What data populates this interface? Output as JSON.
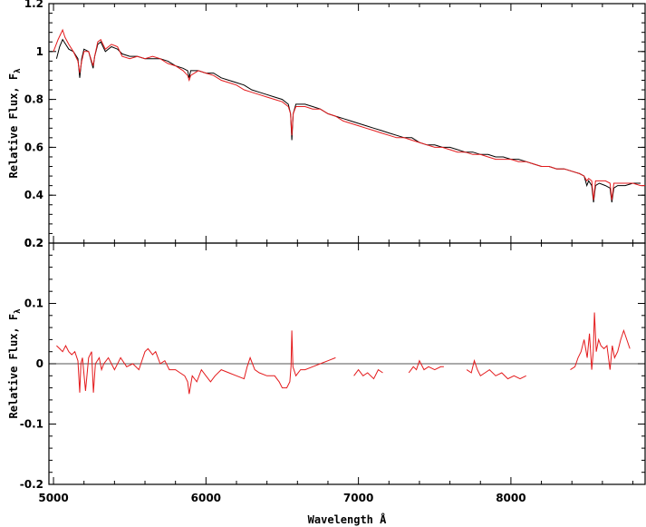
{
  "chart_data": [
    {
      "type": "line",
      "panel": "top",
      "ylabel": "Relative Flux, F",
      "ylabel_subscript": "λ",
      "xlim": [
        4970,
        8880
      ],
      "ylim": [
        0.2,
        1.2
      ],
      "yticks": [
        "0.2",
        "0.4",
        "0.6",
        "0.8",
        "1",
        "1.2"
      ],
      "series": [
        {
          "color": "#000000",
          "x": [
            5020,
            5040,
            5060,
            5080,
            5100,
            5130,
            5160,
            5172,
            5185,
            5200,
            5230,
            5260,
            5270,
            5290,
            5310,
            5340,
            5380,
            5420,
            5450,
            5500,
            5550,
            5600,
            5650,
            5700,
            5750,
            5800,
            5850,
            5880,
            5890,
            5900,
            5950,
            6000,
            6050,
            6100,
            6150,
            6200,
            6250,
            6300,
            6350,
            6400,
            6450,
            6500,
            6540,
            6555,
            6563,
            6572,
            6590,
            6650,
            6700,
            6750,
            6800,
            6850,
            6900,
            6950,
            7000,
            7050,
            7100,
            7150,
            7200,
            7250,
            7300,
            7350,
            7400,
            7450,
            7500,
            7550,
            7600,
            7650,
            7700,
            7750,
            7800,
            7850,
            7900,
            7950,
            8000,
            8050,
            8100,
            8150,
            8200,
            8250,
            8300,
            8350,
            8400,
            8450,
            8480,
            8498,
            8510,
            8530,
            8542,
            8555,
            8580,
            8620,
            8650,
            8662,
            8675,
            8700,
            8750,
            8800,
            8850
          ],
          "y": [
            0.97,
            1.02,
            1.05,
            1.03,
            1.01,
            1.0,
            0.97,
            0.89,
            0.97,
            1.01,
            1.0,
            0.93,
            0.98,
            1.03,
            1.04,
            1.0,
            1.02,
            1.01,
            0.99,
            0.98,
            0.98,
            0.97,
            0.97,
            0.97,
            0.96,
            0.94,
            0.93,
            0.92,
            0.89,
            0.92,
            0.92,
            0.91,
            0.91,
            0.89,
            0.88,
            0.87,
            0.86,
            0.84,
            0.83,
            0.82,
            0.81,
            0.8,
            0.78,
            0.74,
            0.63,
            0.74,
            0.78,
            0.78,
            0.77,
            0.76,
            0.74,
            0.73,
            0.72,
            0.71,
            0.7,
            0.69,
            0.68,
            0.67,
            0.66,
            0.65,
            0.64,
            0.64,
            0.62,
            0.61,
            0.61,
            0.6,
            0.6,
            0.59,
            0.58,
            0.58,
            0.57,
            0.57,
            0.56,
            0.56,
            0.55,
            0.55,
            0.54,
            0.53,
            0.52,
            0.52,
            0.51,
            0.51,
            0.5,
            0.49,
            0.48,
            0.44,
            0.46,
            0.44,
            0.37,
            0.44,
            0.45,
            0.44,
            0.43,
            0.37,
            0.43,
            0.44,
            0.44,
            0.45,
            0.45
          ]
        },
        {
          "color": "#e41a1c",
          "x": [
            5000,
            5030,
            5060,
            5075,
            5100,
            5130,
            5160,
            5172,
            5185,
            5200,
            5230,
            5260,
            5270,
            5290,
            5310,
            5340,
            5380,
            5420,
            5450,
            5500,
            5550,
            5600,
            5650,
            5700,
            5750,
            5800,
            5850,
            5880,
            5890,
            5900,
            5950,
            6000,
            6050,
            6100,
            6150,
            6200,
            6250,
            6300,
            6350,
            6400,
            6450,
            6500,
            6540,
            6555,
            6563,
            6572,
            6590,
            6650,
            6700,
            6750,
            6800,
            6850,
            6900,
            6950,
            7000,
            7050,
            7100,
            7150,
            7200,
            7250,
            7300,
            7350,
            7400,
            7450,
            7500,
            7550,
            7600,
            7650,
            7700,
            7750,
            7800,
            7850,
            7900,
            7950,
            8000,
            8050,
            8100,
            8150,
            8200,
            8250,
            8300,
            8350,
            8400,
            8450,
            8480,
            8498,
            8510,
            8530,
            8542,
            8555,
            8580,
            8620,
            8650,
            8662,
            8675,
            8700,
            8750,
            8800,
            8850,
            8880
          ],
          "y": [
            1.0,
            1.05,
            1.09,
            1.06,
            1.03,
            1.0,
            0.96,
            0.91,
            0.96,
            1.0,
            1.0,
            0.94,
            0.98,
            1.04,
            1.05,
            1.01,
            1.03,
            1.02,
            0.98,
            0.97,
            0.98,
            0.97,
            0.98,
            0.97,
            0.95,
            0.94,
            0.92,
            0.9,
            0.88,
            0.9,
            0.92,
            0.91,
            0.9,
            0.88,
            0.87,
            0.86,
            0.84,
            0.83,
            0.82,
            0.81,
            0.8,
            0.79,
            0.77,
            0.74,
            0.65,
            0.74,
            0.77,
            0.77,
            0.76,
            0.76,
            0.74,
            0.73,
            0.71,
            0.7,
            0.69,
            0.68,
            0.67,
            0.66,
            0.65,
            0.64,
            0.64,
            0.63,
            0.62,
            0.61,
            0.6,
            0.6,
            0.59,
            0.58,
            0.58,
            0.57,
            0.57,
            0.56,
            0.55,
            0.55,
            0.55,
            0.54,
            0.54,
            0.53,
            0.52,
            0.52,
            0.51,
            0.51,
            0.5,
            0.49,
            0.48,
            0.46,
            0.47,
            0.46,
            0.38,
            0.46,
            0.46,
            0.46,
            0.45,
            0.38,
            0.45,
            0.45,
            0.45,
            0.45,
            0.44,
            0.44
          ]
        }
      ]
    },
    {
      "type": "line",
      "panel": "bottom",
      "ylabel": "Relative Flux, F",
      "ylabel_subscript": "λ",
      "xlabel": "Wavelength Å",
      "xlim": [
        4970,
        8880
      ],
      "ylim": [
        -0.2,
        0.2
      ],
      "yticks": [
        "-0.2",
        "-0.1",
        "0",
        "0.1",
        "0.2"
      ],
      "xticks": [
        "5000",
        "6000",
        "7000",
        "8000"
      ],
      "xtick_values": [
        5000,
        6000,
        7000,
        8000
      ],
      "zero_line": 0,
      "series": [
        {
          "color": "#e41a1c",
          "segments": [
            {
              "x": [
                5020,
                5040,
                5060,
                5080,
                5100,
                5120,
                5140,
                5160,
                5172,
                5180,
                5190,
                5210,
                5230,
                5250,
                5262,
                5275,
                5300,
                5315,
                5330,
                5360,
                5400,
                5440,
                5480,
                5520,
                5560,
                5600,
                5620,
                5650,
                5670,
                5700,
                5730,
                5760,
                5800,
                5830,
                5860,
                5880,
                5890,
                5910,
                5940,
                5970,
                6000,
                6030,
                6060,
                6100,
                6150,
                6200,
                6250,
                6270,
                6290,
                6320,
                6350,
                6400,
                6450,
                6480,
                6500,
                6530,
                6550,
                6558,
                6563,
                6570,
                6590,
                6620,
                6650,
                6700,
                6750,
                6800,
                6850
              ],
              "y": [
                0.03,
                0.025,
                0.02,
                0.03,
                0.02,
                0.015,
                0.02,
                0.005,
                -0.048,
                0.0,
                0.01,
                -0.045,
                0.01,
                0.02,
                -0.048,
                0.0,
                0.01,
                -0.01,
                0.0,
                0.01,
                -0.01,
                0.01,
                -0.005,
                0.0,
                -0.01,
                0.02,
                0.025,
                0.015,
                0.02,
                0.0,
                0.005,
                -0.01,
                -0.01,
                -0.015,
                -0.02,
                -0.03,
                -0.05,
                -0.02,
                -0.03,
                -0.01,
                -0.02,
                -0.03,
                -0.02,
                -0.01,
                -0.015,
                -0.02,
                -0.025,
                -0.005,
                0.01,
                -0.01,
                -0.015,
                -0.02,
                -0.02,
                -0.03,
                -0.04,
                -0.04,
                -0.03,
                -0.005,
                0.055,
                -0.005,
                -0.02,
                -0.01,
                -0.01,
                -0.005,
                0.0,
                0.005,
                0.01
              ]
            },
            {
              "x": [
                6970,
                7000,
                7030,
                7060,
                7100,
                7130,
                7160
              ],
              "y": [
                -0.02,
                -0.01,
                -0.02,
                -0.015,
                -0.025,
                -0.01,
                -0.015
              ]
            },
            {
              "x": [
                7330,
                7360,
                7380,
                7400,
                7430,
                7460,
                7500,
                7540,
                7560
              ],
              "y": [
                -0.015,
                -0.005,
                -0.01,
                0.005,
                -0.01,
                -0.005,
                -0.01,
                -0.005,
                -0.005
              ]
            },
            {
              "x": [
                7710,
                7740,
                7760,
                7780,
                7800,
                7830,
                7860,
                7900,
                7940,
                7980,
                8020,
                8060,
                8100
              ],
              "y": [
                -0.01,
                -0.015,
                0.005,
                -0.01,
                -0.02,
                -0.015,
                -0.01,
                -0.02,
                -0.015,
                -0.025,
                -0.02,
                -0.025,
                -0.02
              ]
            },
            {
              "x": [
                8390,
                8420,
                8440,
                8460,
                8480,
                8500,
                8515,
                8530,
                8540,
                8548,
                8560,
                8575,
                8590,
                8610,
                8630,
                8650,
                8665,
                8680,
                8700,
                8720,
                8740,
                8760,
                8780
              ],
              "y": [
                -0.01,
                -0.005,
                0.01,
                0.02,
                0.04,
                0.01,
                0.05,
                -0.01,
                0.02,
                0.085,
                0.02,
                0.04,
                0.03,
                0.025,
                0.03,
                -0.01,
                0.03,
                0.01,
                0.02,
                0.04,
                0.055,
                0.04,
                0.025
              ]
            }
          ]
        }
      ]
    }
  ]
}
